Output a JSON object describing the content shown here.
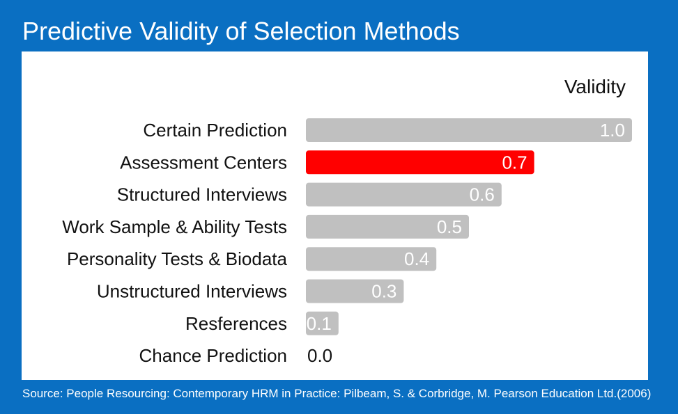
{
  "title": "Predictive Validity of Selection Methods",
  "source": "Source: People Resourcing: Contemporary HRM in Practice: Pilbeam, S. & Corbridge, M. Pearson Education Ltd.(2006)",
  "colors": {
    "frame": "#0a6fc2",
    "bar_default": "#c0c0c0",
    "bar_highlight": "#ff0000"
  },
  "chart_data": {
    "type": "bar",
    "orientation": "horizontal",
    "value_heading": "Validity",
    "categories": [
      "Certain Prediction",
      "Assessment Centers",
      "Structured Interviews",
      "Work Sample & Ability Tests",
      "Personality Tests & Biodata",
      "Unstructured Interviews",
      "Resferences",
      "Chance Prediction"
    ],
    "values": [
      1.0,
      0.7,
      0.6,
      0.5,
      0.4,
      0.3,
      0.1,
      0.0
    ],
    "value_labels": [
      "1.0",
      "0.7",
      "0.6",
      "0.5",
      "0.4",
      "0.3",
      "0.1",
      "0.0"
    ],
    "highlight_index": 1,
    "xlim": [
      0,
      1.0
    ],
    "grid": false,
    "legend": "none"
  }
}
